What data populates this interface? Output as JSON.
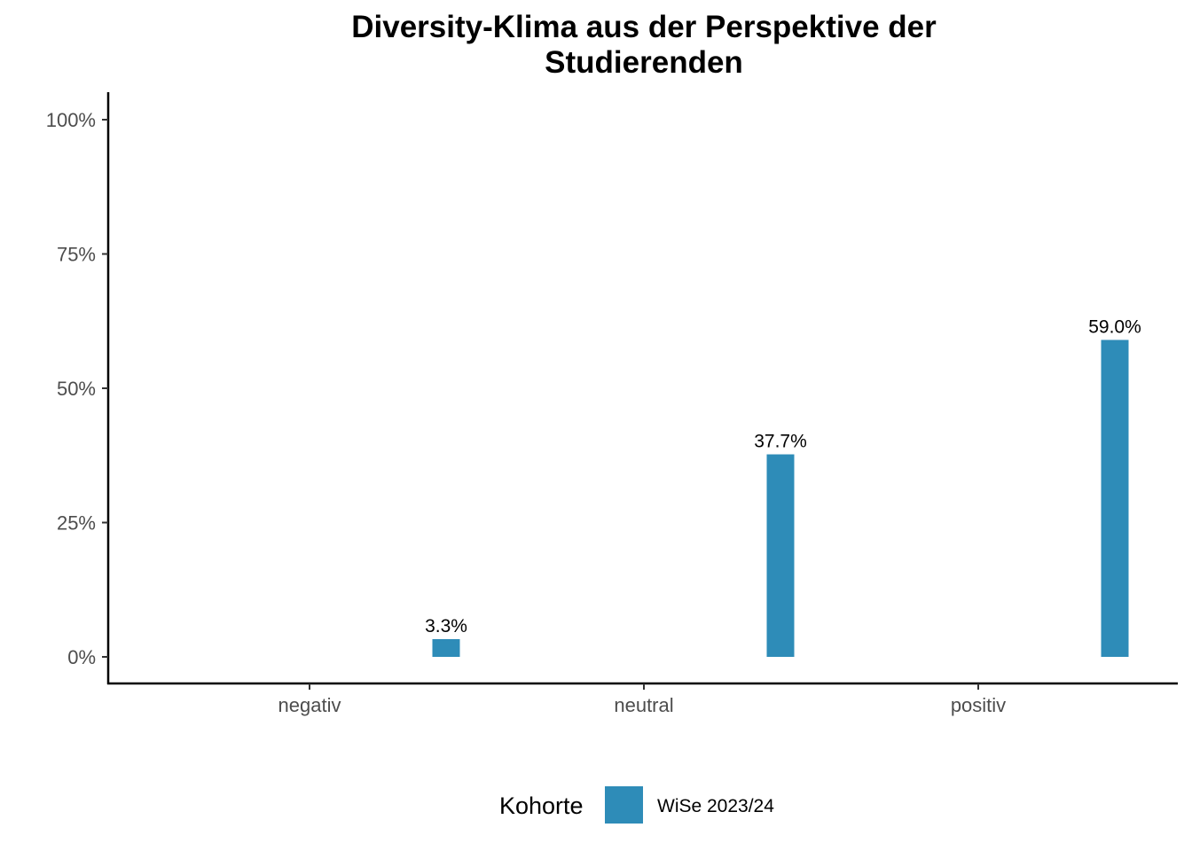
{
  "chart_data": {
    "type": "bar",
    "title_lines": [
      "Diversity-Klima aus der Perspektive der",
      "Studierenden"
    ],
    "xlabel": "",
    "ylabel": "",
    "categories": [
      "negativ",
      "neutral",
      "positiv"
    ],
    "series": [
      {
        "name": "WiSe 2023/24",
        "color": "#2e8cb8",
        "values": [
          3.3,
          37.7,
          59.0
        ],
        "labels": [
          "3.3%",
          "37.7%",
          "59.0%"
        ]
      }
    ],
    "ylim": [
      0,
      100
    ],
    "yticks": [
      0,
      25,
      50,
      75,
      100
    ],
    "ytick_labels": [
      "0%",
      "25%",
      "50%",
      "75%",
      "100%"
    ],
    "grid": false,
    "legend": {
      "title": "Kohorte",
      "placement": "bottom"
    }
  }
}
